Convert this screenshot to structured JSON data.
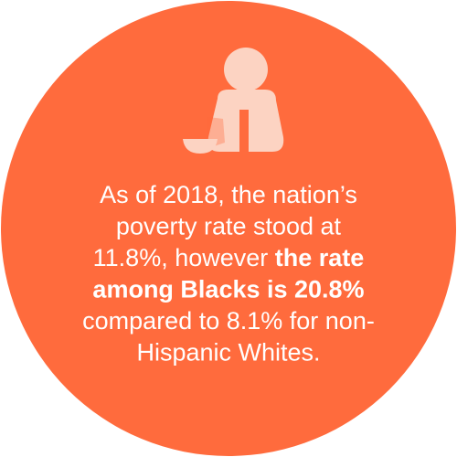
{
  "text": {
    "lines": [
      [
        {
          "text": "As of 2018, the nation’s",
          "bold": false
        }
      ],
      [
        {
          "text": "poverty rate stood at",
          "bold": false
        }
      ],
      [
        {
          "text": "11.8%, however ",
          "bold": false
        },
        {
          "text": "the rate",
          "bold": true
        }
      ],
      [
        {
          "text": "among Blacks is 20.8%",
          "bold": true
        }
      ],
      [
        {
          "text": "compared to 8.1% for non-",
          "bold": false
        }
      ],
      [
        {
          "text": "Hispanic Whites.",
          "bold": false
        }
      ]
    ]
  }
}
